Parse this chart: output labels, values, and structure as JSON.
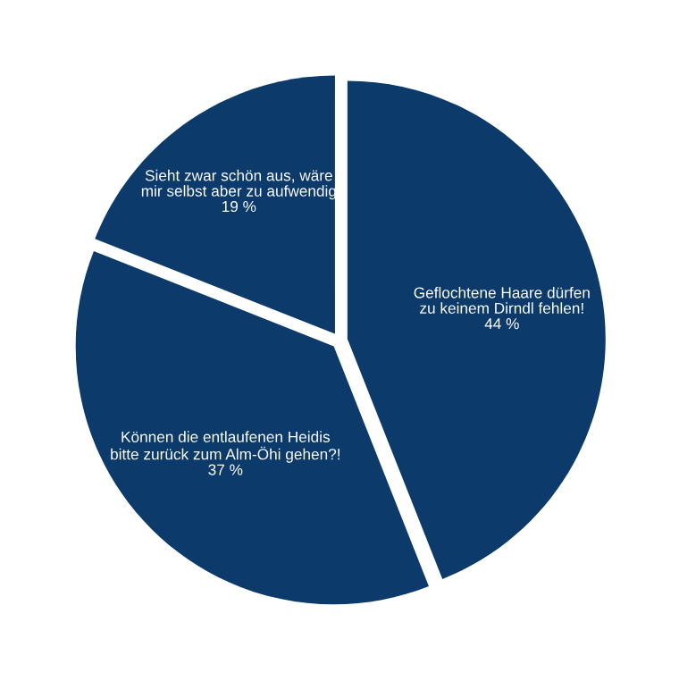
{
  "chart_data": {
    "type": "pie",
    "categories": [
      "Geflochtene Haare dürfen\nzu keinem Dirndl fehlen!",
      "Können die entlaufenen Heidis\nbitte zurück zum Alm-Öhi gehen?!",
      "Sieht zwar schön aus, wäre\nmir selbst aber zu aufwendig"
    ],
    "values": [
      44,
      37,
      19
    ],
    "value_labels": [
      "44 %",
      "37 %",
      "19 %"
    ],
    "colors": [
      "#0c3a6b",
      "#0c3a6b",
      "#0c3a6b"
    ]
  }
}
